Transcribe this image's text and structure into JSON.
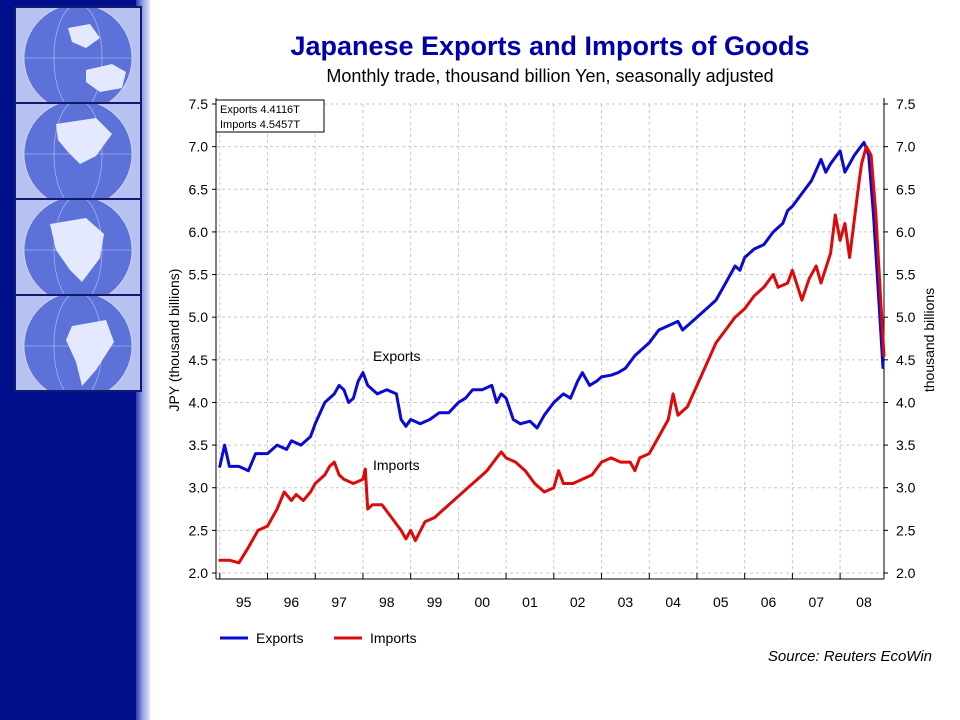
{
  "sidebar": {
    "tiles": [
      "globe-asia-australia",
      "globe-north-america",
      "globe-africa",
      "globe-south-america"
    ]
  },
  "colors": {
    "exports": "#0a0ad2",
    "imports": "#dc0a0a",
    "sidebar": "#000e8c",
    "grid": "#c8c8c8"
  },
  "source": "Source: Reuters EcoWin",
  "chart_data": {
    "type": "line",
    "title": "Japanese Exports and Imports of Goods",
    "subtitle": "Monthly trade, thousand billion Yen, seasonally adjusted",
    "ylabel_left": "JPY (thousand billions)",
    "ylabel_right": "thousand billions",
    "ylim": [
      2.0,
      7.5
    ],
    "yticks": [
      "2.0",
      "2.5",
      "3.0",
      "3.5",
      "4.0",
      "4.5",
      "5.0",
      "5.5",
      "6.0",
      "6.5",
      "7.0",
      "7.5"
    ],
    "xlim": [
      1994.92,
      2008.92
    ],
    "xticks": [
      "95",
      "96",
      "97",
      "98",
      "99",
      "00",
      "01",
      "02",
      "03",
      "04",
      "05",
      "06",
      "07",
      "08"
    ],
    "grid": true,
    "legend_position": "bottom-left",
    "info_box": [
      "Exports 4.4116T",
      "Imports 4.5457T"
    ],
    "annotations": [
      "Exports",
      "Imports"
    ],
    "series": [
      {
        "name": "Exports",
        "points": [
          [
            1995.0,
            3.25
          ],
          [
            1995.1,
            3.5
          ],
          [
            1995.2,
            3.25
          ],
          [
            1995.4,
            3.25
          ],
          [
            1995.6,
            3.2
          ],
          [
            1995.75,
            3.4
          ],
          [
            1996.0,
            3.4
          ],
          [
            1996.2,
            3.5
          ],
          [
            1996.4,
            3.45
          ],
          [
            1996.5,
            3.55
          ],
          [
            1996.7,
            3.5
          ],
          [
            1996.9,
            3.6
          ],
          [
            1997.0,
            3.75
          ],
          [
            1997.2,
            4.0
          ],
          [
            1997.4,
            4.1
          ],
          [
            1997.5,
            4.2
          ],
          [
            1997.6,
            4.15
          ],
          [
            1997.7,
            4.0
          ],
          [
            1997.8,
            4.05
          ],
          [
            1997.9,
            4.25
          ],
          [
            1998.0,
            4.35
          ],
          [
            1998.1,
            4.2
          ],
          [
            1998.3,
            4.1
          ],
          [
            1998.5,
            4.15
          ],
          [
            1998.7,
            4.1
          ],
          [
            1998.8,
            3.8
          ],
          [
            1998.9,
            3.72
          ],
          [
            1999.0,
            3.8
          ],
          [
            1999.2,
            3.75
          ],
          [
            1999.4,
            3.8
          ],
          [
            1999.6,
            3.88
          ],
          [
            1999.8,
            3.88
          ],
          [
            2000.0,
            4.0
          ],
          [
            2000.15,
            4.05
          ],
          [
            2000.3,
            4.15
          ],
          [
            2000.5,
            4.15
          ],
          [
            2000.7,
            4.2
          ],
          [
            2000.8,
            4.0
          ],
          [
            2000.9,
            4.1
          ],
          [
            2001.0,
            4.05
          ],
          [
            2001.15,
            3.8
          ],
          [
            2001.3,
            3.75
          ],
          [
            2001.5,
            3.78
          ],
          [
            2001.65,
            3.7
          ],
          [
            2001.8,
            3.85
          ],
          [
            2002.0,
            4.0
          ],
          [
            2002.2,
            4.1
          ],
          [
            2002.35,
            4.05
          ],
          [
            2002.5,
            4.25
          ],
          [
            2002.6,
            4.35
          ],
          [
            2002.75,
            4.2
          ],
          [
            2002.9,
            4.25
          ],
          [
            2003.0,
            4.3
          ],
          [
            2003.2,
            4.32
          ],
          [
            2003.35,
            4.35
          ],
          [
            2003.5,
            4.4
          ],
          [
            2003.7,
            4.55
          ],
          [
            2003.9,
            4.65
          ],
          [
            2004.0,
            4.7
          ],
          [
            2004.2,
            4.85
          ],
          [
            2004.4,
            4.9
          ],
          [
            2004.6,
            4.95
          ],
          [
            2004.7,
            4.85
          ],
          [
            2004.8,
            4.9
          ],
          [
            2005.0,
            5.0
          ],
          [
            2005.2,
            5.1
          ],
          [
            2005.4,
            5.2
          ],
          [
            2005.6,
            5.4
          ],
          [
            2005.8,
            5.6
          ],
          [
            2005.9,
            5.55
          ],
          [
            2006.0,
            5.7
          ],
          [
            2006.2,
            5.8
          ],
          [
            2006.4,
            5.85
          ],
          [
            2006.6,
            6.0
          ],
          [
            2006.8,
            6.1
          ],
          [
            2006.9,
            6.25
          ],
          [
            2007.0,
            6.3
          ],
          [
            2007.2,
            6.45
          ],
          [
            2007.4,
            6.6
          ],
          [
            2007.6,
            6.85
          ],
          [
            2007.7,
            6.7
          ],
          [
            2007.8,
            6.8
          ],
          [
            2008.0,
            6.95
          ],
          [
            2008.1,
            6.7
          ],
          [
            2008.3,
            6.9
          ],
          [
            2008.5,
            7.05
          ],
          [
            2008.6,
            6.9
          ],
          [
            2008.7,
            6.2
          ],
          [
            2008.8,
            5.3
          ],
          [
            2008.9,
            4.41
          ]
        ]
      },
      {
        "name": "Imports",
        "points": [
          [
            1995.0,
            2.15
          ],
          [
            1995.2,
            2.15
          ],
          [
            1995.4,
            2.12
          ],
          [
            1995.6,
            2.3
          ],
          [
            1995.8,
            2.5
          ],
          [
            1996.0,
            2.55
          ],
          [
            1996.2,
            2.75
          ],
          [
            1996.35,
            2.95
          ],
          [
            1996.5,
            2.85
          ],
          [
            1996.6,
            2.92
          ],
          [
            1996.75,
            2.85
          ],
          [
            1996.9,
            2.95
          ],
          [
            1997.0,
            3.05
          ],
          [
            1997.2,
            3.15
          ],
          [
            1997.3,
            3.25
          ],
          [
            1997.4,
            3.3
          ],
          [
            1997.5,
            3.15
          ],
          [
            1997.6,
            3.1
          ],
          [
            1997.8,
            3.05
          ],
          [
            1998.0,
            3.1
          ],
          [
            1998.05,
            3.22
          ],
          [
            1998.1,
            2.75
          ],
          [
            1998.2,
            2.8
          ],
          [
            1998.4,
            2.8
          ],
          [
            1998.6,
            2.65
          ],
          [
            1998.8,
            2.5
          ],
          [
            1998.9,
            2.4
          ],
          [
            1999.0,
            2.5
          ],
          [
            1999.1,
            2.38
          ],
          [
            1999.3,
            2.6
          ],
          [
            1999.5,
            2.65
          ],
          [
            1999.7,
            2.75
          ],
          [
            1999.9,
            2.85
          ],
          [
            2000.0,
            2.9
          ],
          [
            2000.2,
            3.0
          ],
          [
            2000.4,
            3.1
          ],
          [
            2000.6,
            3.2
          ],
          [
            2000.8,
            3.35
          ],
          [
            2000.9,
            3.42
          ],
          [
            2001.0,
            3.35
          ],
          [
            2001.2,
            3.3
          ],
          [
            2001.4,
            3.2
          ],
          [
            2001.6,
            3.05
          ],
          [
            2001.8,
            2.95
          ],
          [
            2002.0,
            3.0
          ],
          [
            2002.1,
            3.2
          ],
          [
            2002.2,
            3.05
          ],
          [
            2002.4,
            3.05
          ],
          [
            2002.6,
            3.1
          ],
          [
            2002.8,
            3.15
          ],
          [
            2003.0,
            3.3
          ],
          [
            2003.2,
            3.35
          ],
          [
            2003.4,
            3.3
          ],
          [
            2003.6,
            3.3
          ],
          [
            2003.7,
            3.2
          ],
          [
            2003.8,
            3.35
          ],
          [
            2004.0,
            3.4
          ],
          [
            2004.2,
            3.6
          ],
          [
            2004.4,
            3.8
          ],
          [
            2004.5,
            4.1
          ],
          [
            2004.6,
            3.85
          ],
          [
            2004.8,
            3.95
          ],
          [
            2005.0,
            4.2
          ],
          [
            2005.2,
            4.45
          ],
          [
            2005.4,
            4.7
          ],
          [
            2005.6,
            4.85
          ],
          [
            2005.8,
            5.0
          ],
          [
            2006.0,
            5.1
          ],
          [
            2006.2,
            5.25
          ],
          [
            2006.4,
            5.35
          ],
          [
            2006.6,
            5.5
          ],
          [
            2006.7,
            5.35
          ],
          [
            2006.9,
            5.4
          ],
          [
            2007.0,
            5.55
          ],
          [
            2007.2,
            5.2
          ],
          [
            2007.35,
            5.45
          ],
          [
            2007.5,
            5.6
          ],
          [
            2007.6,
            5.4
          ],
          [
            2007.8,
            5.75
          ],
          [
            2007.9,
            6.2
          ],
          [
            2008.0,
            5.9
          ],
          [
            2008.1,
            6.1
          ],
          [
            2008.2,
            5.7
          ],
          [
            2008.4,
            6.6
          ],
          [
            2008.45,
            6.8
          ],
          [
            2008.55,
            7.0
          ],
          [
            2008.65,
            6.9
          ],
          [
            2008.75,
            6.2
          ],
          [
            2008.85,
            5.2
          ],
          [
            2008.92,
            4.55
          ]
        ]
      }
    ]
  }
}
